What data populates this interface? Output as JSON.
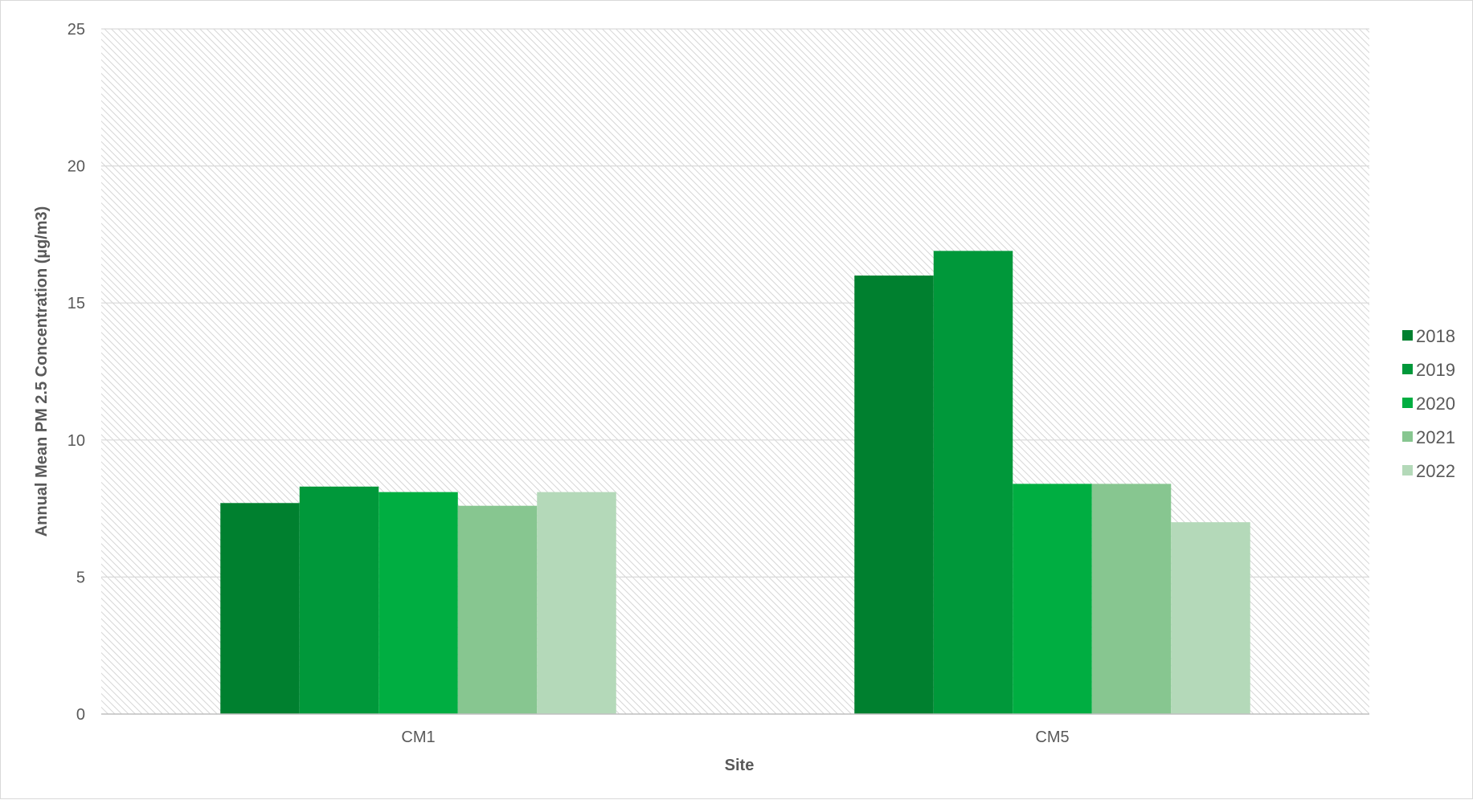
{
  "chart_data": {
    "type": "bar",
    "title": "",
    "xlabel": "Site",
    "ylabel": "Annual Mean PM 2.5 Concentration (µg/m3)",
    "ylim": [
      0,
      25
    ],
    "yticks": [
      "0",
      "5",
      "10",
      "15",
      "20",
      "25"
    ],
    "categories": [
      "CM1",
      "CM5"
    ],
    "grid": true,
    "legend_position": "right",
    "series": [
      {
        "name": "2018",
        "color": "#00802f",
        "values": [
          7.7,
          16.0
        ]
      },
      {
        "name": "2019",
        "color": "#00983a",
        "values": [
          8.3,
          16.9
        ]
      },
      {
        "name": "2020",
        "color": "#00ae41",
        "values": [
          8.1,
          8.4
        ]
      },
      {
        "name": "2021",
        "color": "#87c690",
        "values": [
          7.6,
          8.4
        ]
      },
      {
        "name": "2022",
        "color": "#b4d9b9",
        "values": [
          8.1,
          7.0
        ]
      }
    ]
  }
}
